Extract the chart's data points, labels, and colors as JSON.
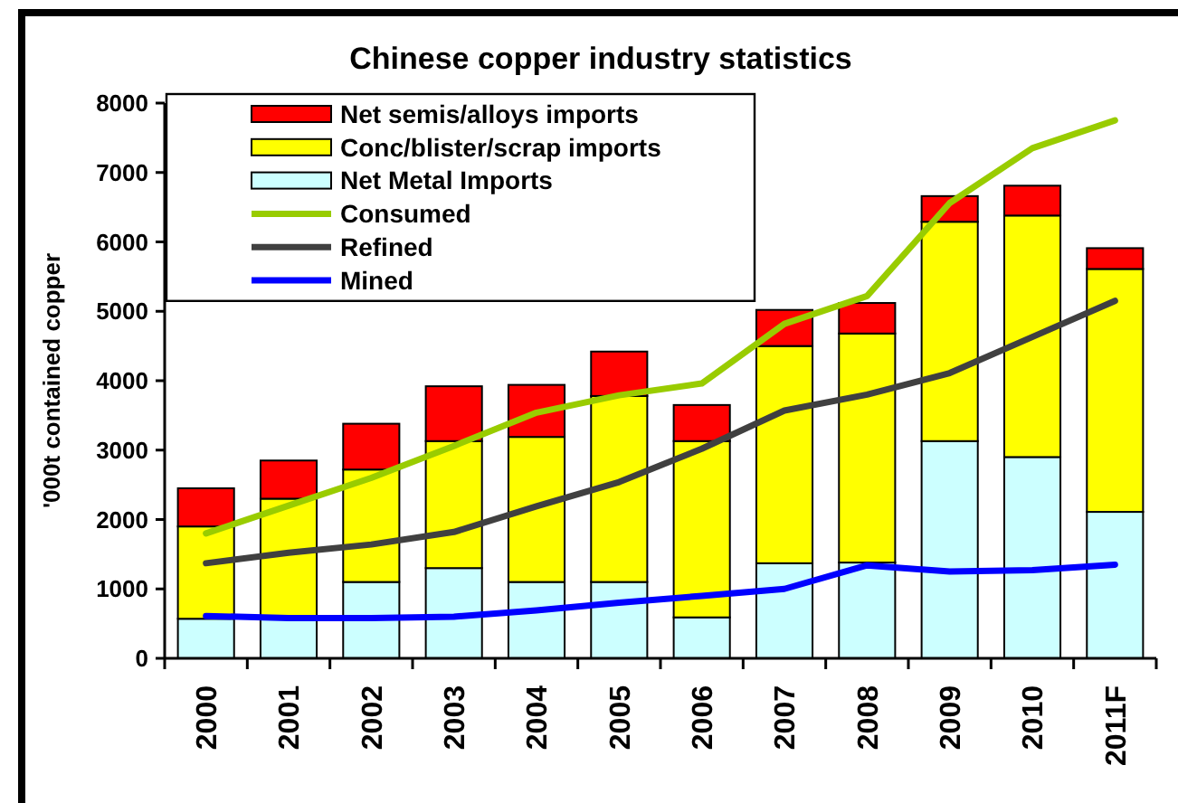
{
  "chart_data": {
    "type": "bar",
    "title": "Chinese copper industry statistics",
    "ylabel": "'000t contained copper",
    "categories": [
      "2000",
      "2001",
      "2002",
      "2003",
      "2004",
      "2005",
      "2006",
      "2007",
      "2008",
      "2009",
      "2010",
      "2011F"
    ],
    "stacked": true,
    "series": [
      {
        "name": "Net Metal Imports",
        "color": "#ccffff",
        "values": [
          570,
          600,
          1100,
          1300,
          1100,
          1100,
          590,
          1370,
          1380,
          3130,
          2900,
          2110
        ]
      },
      {
        "name": "Conc/blister/scrap imports",
        "color": "#ffff00",
        "values": [
          1330,
          1700,
          1620,
          1830,
          2090,
          2680,
          2540,
          3130,
          3300,
          3160,
          3480,
          3500
        ]
      },
      {
        "name": "Net semis/alloys imports",
        "color": "#ff0000",
        "values": [
          550,
          550,
          660,
          790,
          750,
          640,
          520,
          520,
          440,
          370,
          430,
          300
        ]
      },
      {
        "name": "Consumed",
        "type": "line",
        "color": "#99cc00",
        "values": [
          1800,
          2200,
          2600,
          3060,
          3540,
          3790,
          3960,
          4820,
          5220,
          6560,
          7350,
          7750
        ]
      },
      {
        "name": "Refined",
        "type": "line",
        "color": "#404040",
        "values": [
          1370,
          1520,
          1640,
          1820,
          2190,
          2540,
          3020,
          3570,
          3800,
          4110,
          4630,
          5150
        ]
      },
      {
        "name": "Mined",
        "type": "line",
        "color": "#0000ff",
        "values": [
          610,
          580,
          580,
          600,
          690,
          800,
          900,
          1000,
          1340,
          1250,
          1270,
          1350
        ]
      }
    ],
    "ylim": [
      0,
      8000
    ],
    "yticks": [
      0,
      1000,
      2000,
      3000,
      4000,
      5000,
      6000,
      7000,
      8000
    ],
    "legend": "top left"
  }
}
